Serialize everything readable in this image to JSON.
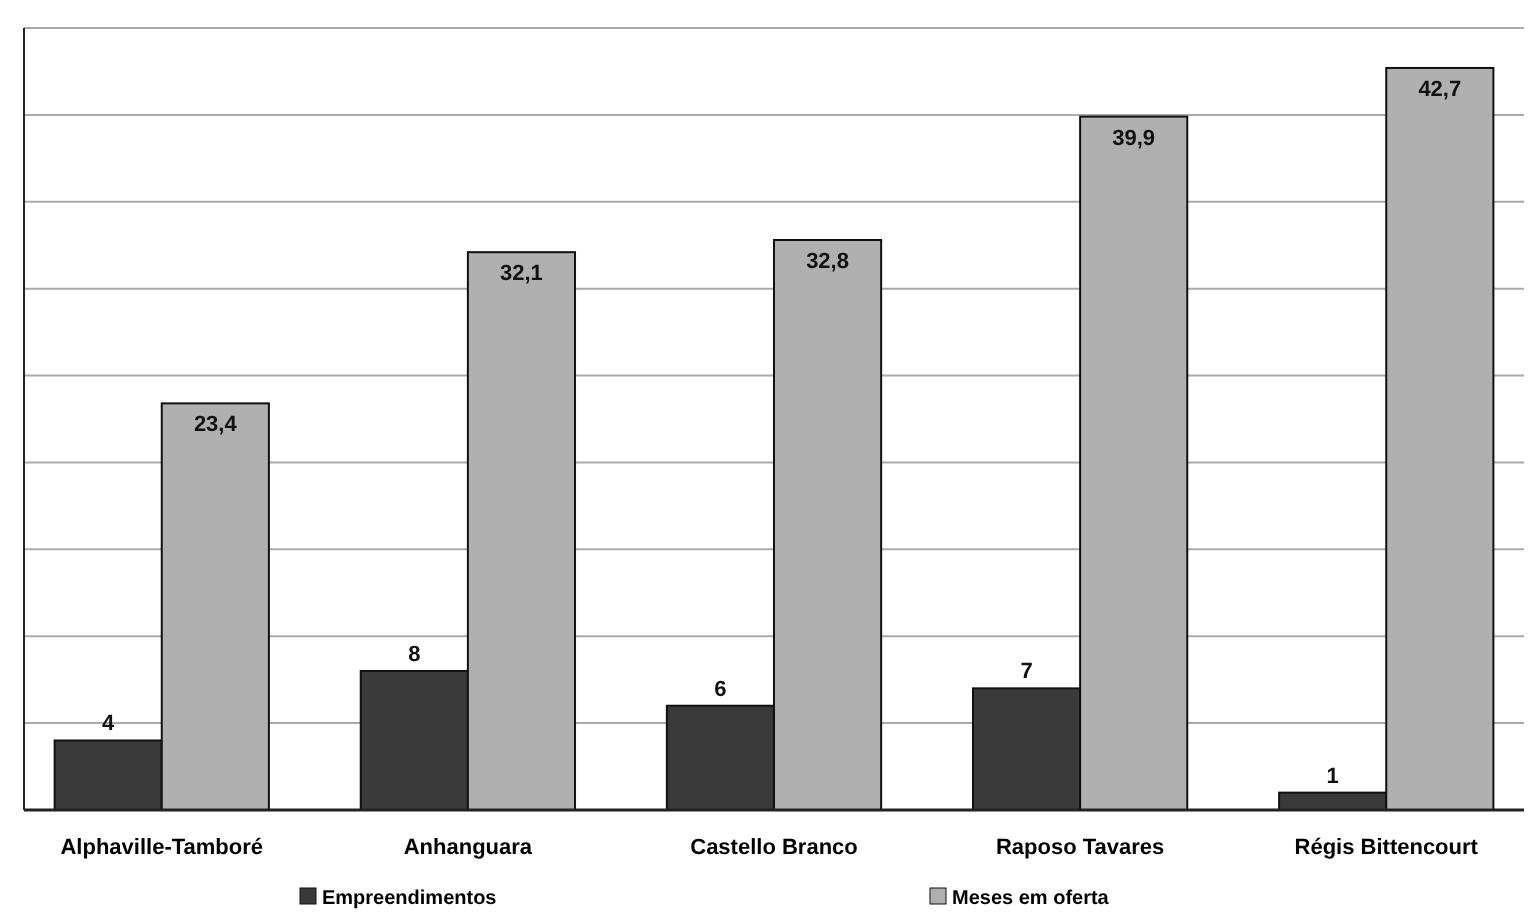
{
  "chart_data": {
    "type": "bar",
    "categories": [
      "Alphaville-Tamboré",
      "Anhanguara",
      "Castello Branco",
      "Raposo Tavares",
      "Régis Bittencourt"
    ],
    "series": [
      {
        "name": "Empreendimentos",
        "color": "#3a3a3a",
        "values": [
          4,
          8,
          6,
          7,
          1
        ],
        "value_labels": [
          "4",
          "8",
          "6",
          "7",
          "1"
        ]
      },
      {
        "name": "Meses em oferta",
        "color": "#b0b0b0",
        "values": [
          23.4,
          32.1,
          32.8,
          39.9,
          42.7
        ],
        "value_labels": [
          "23,4",
          "32,1",
          "32,8",
          "39,9",
          "42,7"
        ]
      }
    ],
    "ylim": [
      0,
      45
    ],
    "yticks": [
      {
        "value": 0,
        "label": null
      },
      {
        "value": 5,
        "label": null
      },
      {
        "value": 10,
        "label": null
      },
      {
        "value": 15,
        "label": null
      },
      {
        "value": 20,
        "label": null
      },
      {
        "value": 25,
        "label": null
      },
      {
        "value": 30,
        "label": null
      },
      {
        "value": 35,
        "label": null
      },
      {
        "value": 40,
        "label": null
      },
      {
        "value": 45,
        "label": null
      }
    ],
    "tick_labels": "x",
    "grid": "y",
    "legend": "bottom"
  }
}
